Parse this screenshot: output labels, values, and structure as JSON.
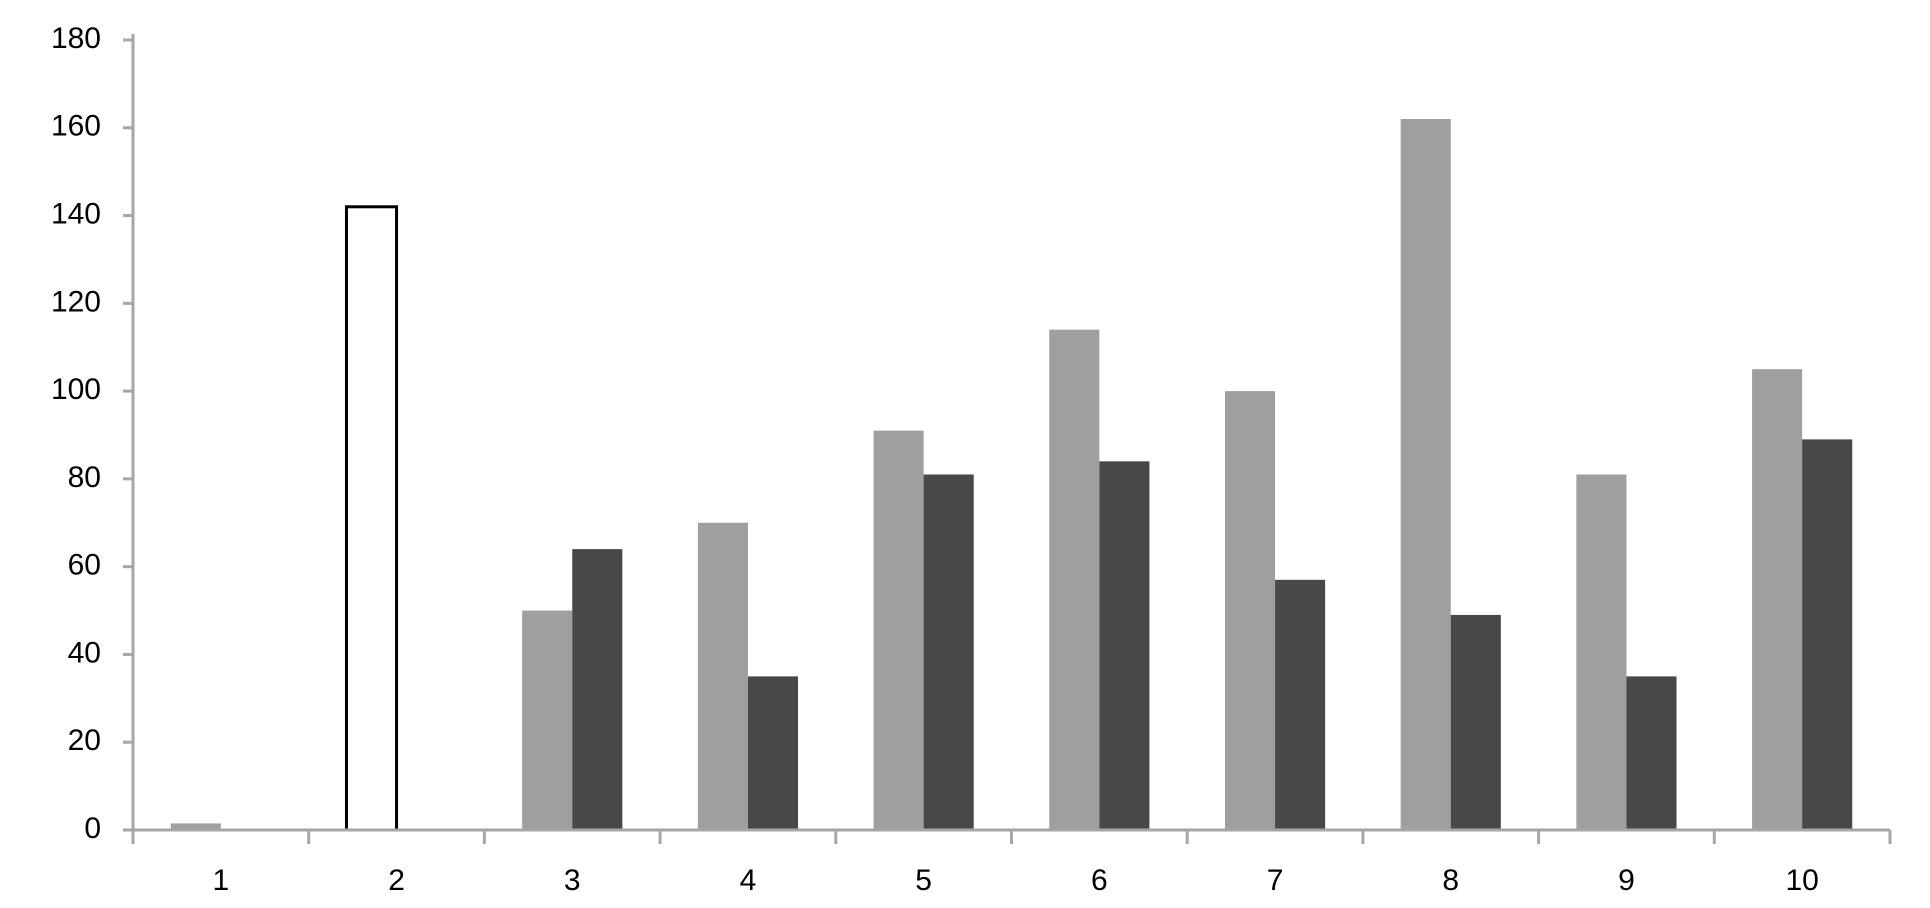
{
  "chart_data": {
    "type": "bar",
    "categories": [
      "1",
      "2",
      "3",
      "4",
      "5",
      "6",
      "7",
      "8",
      "9",
      "10"
    ],
    "series": [
      {
        "color": "#9f9f9f",
        "colors": [
          "#9f9f9f",
          "#ffffff",
          "#9f9f9f",
          "#9f9f9f",
          "#9f9f9f",
          "#9f9f9f",
          "#9f9f9f",
          "#9f9f9f",
          "#9f9f9f",
          "#9f9f9f"
        ],
        "edgecolors": [
          null,
          "#000000",
          null,
          null,
          null,
          null,
          null,
          null,
          null,
          null
        ],
        "values": [
          1.5,
          142,
          50,
          70,
          91,
          114,
          100,
          162,
          81,
          105
        ]
      },
      {
        "color": "#484848",
        "values": [
          null,
          null,
          64,
          35,
          81,
          84,
          57,
          49,
          35,
          89
        ]
      }
    ],
    "ylim": [
      0,
      180
    ],
    "yticks": [
      0,
      20,
      40,
      60,
      80,
      100,
      120,
      140,
      160,
      180
    ],
    "grid": false
  }
}
